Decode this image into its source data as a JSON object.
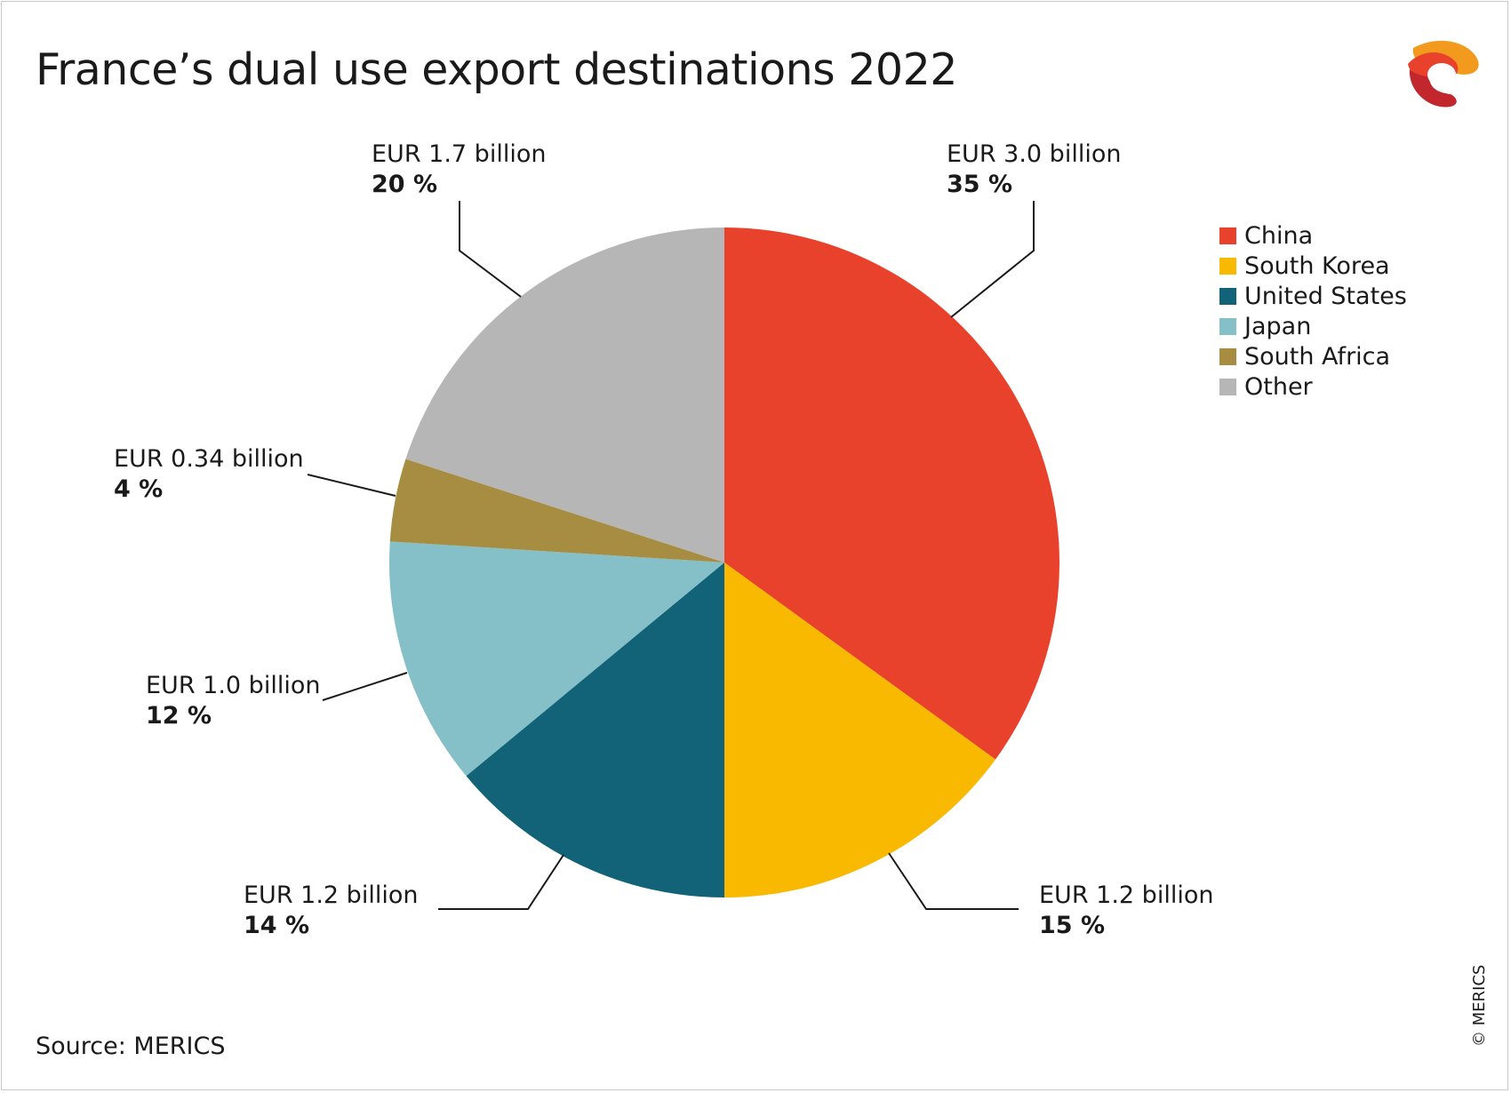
{
  "chart_data": {
    "type": "pie",
    "title": "France’s dual use export destinations 2022",
    "slices": [
      {
        "name": "China",
        "value": 3.0,
        "value_label": "EUR 3.0 billion",
        "percent": 35,
        "percent_label": "35 %",
        "color": "#E8412C"
      },
      {
        "name": "South Korea",
        "value": 1.2,
        "value_label": "EUR 1.2 billion",
        "percent": 15,
        "percent_label": "15 %",
        "color": "#F9B900"
      },
      {
        "name": "United States",
        "value": 1.2,
        "value_label": "EUR 1.2 billion",
        "percent": 14,
        "percent_label": "14 %",
        "color": "#126278"
      },
      {
        "name": "Japan",
        "value": 1.0,
        "value_label": "EUR 1.0 billion",
        "percent": 12,
        "percent_label": "12 %",
        "color": "#85BFC8"
      },
      {
        "name": "South Africa",
        "value": 0.34,
        "value_label": "EUR 0.34 billion",
        "percent": 4,
        "percent_label": "4 %",
        "color": "#A68D42"
      },
      {
        "name": "Other",
        "value": 1.7,
        "value_label": "EUR 1.7 billion",
        "percent": 20,
        "percent_label": "20 %",
        "color": "#B6B6B6"
      }
    ],
    "start": "12 o'clock",
    "direction": "clockwise",
    "legend_position": "top-right"
  },
  "source": "Source: MERICS",
  "copyright": "© MERICS"
}
